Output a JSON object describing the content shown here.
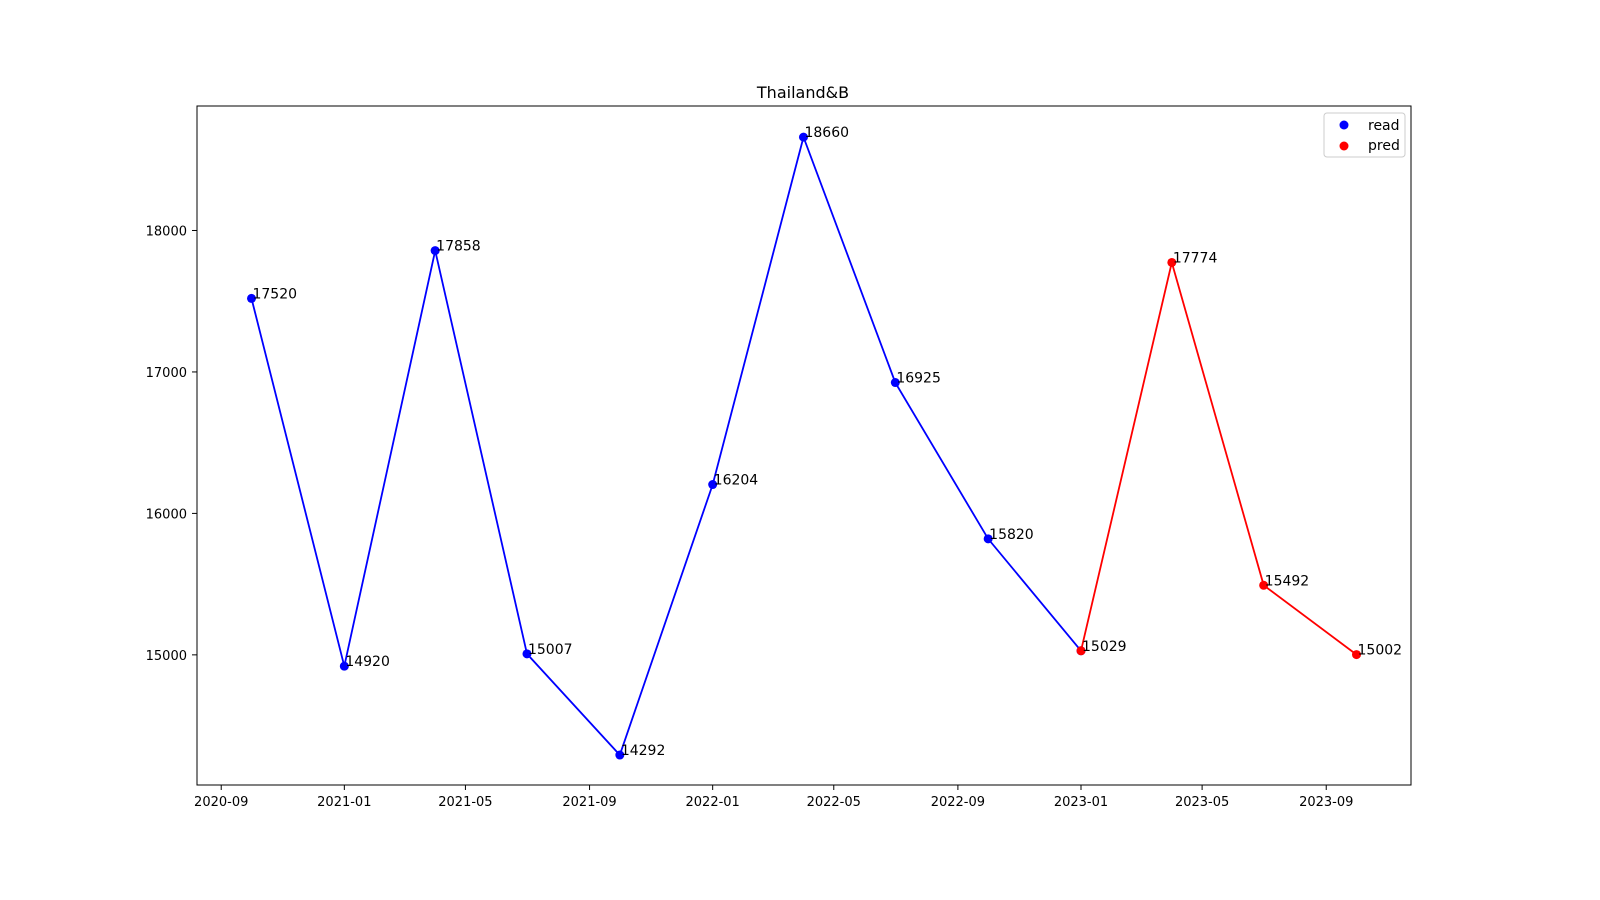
{
  "chart_data": {
    "type": "line",
    "title": "Thailand&B",
    "xlabel": "",
    "ylabel": "",
    "x_ticks": [
      "2020-09",
      "2021-01",
      "2021-05",
      "2021-09",
      "2022-01",
      "2022-05",
      "2022-09",
      "2023-01",
      "2023-05",
      "2023-09"
    ],
    "y_ticks": [
      15000,
      16000,
      17000,
      18000
    ],
    "xlim": [
      "2020-08-08",
      "2023-11-24"
    ],
    "ylim": [
      14080,
      18880
    ],
    "grid": false,
    "legend_position": "top-right",
    "series": [
      {
        "name": "read",
        "color": "#0000ff",
        "points": [
          {
            "x": "2020-10-01",
            "y": 17520
          },
          {
            "x": "2021-01-01",
            "y": 14920
          },
          {
            "x": "2021-04-01",
            "y": 17858
          },
          {
            "x": "2021-07-01",
            "y": 15007
          },
          {
            "x": "2021-10-01",
            "y": 14292
          },
          {
            "x": "2022-01-01",
            "y": 16204
          },
          {
            "x": "2022-04-01",
            "y": 18660
          },
          {
            "x": "2022-07-01",
            "y": 16925
          },
          {
            "x": "2022-10-01",
            "y": 15820
          },
          {
            "x": "2023-01-01",
            "y": 15029
          }
        ]
      },
      {
        "name": "pred",
        "color": "#ff0000",
        "points": [
          {
            "x": "2023-01-01",
            "y": 15029
          },
          {
            "x": "2023-04-01",
            "y": 17774
          },
          {
            "x": "2023-07-01",
            "y": 15492
          },
          {
            "x": "2023-10-01",
            "y": 15002
          }
        ]
      }
    ]
  }
}
